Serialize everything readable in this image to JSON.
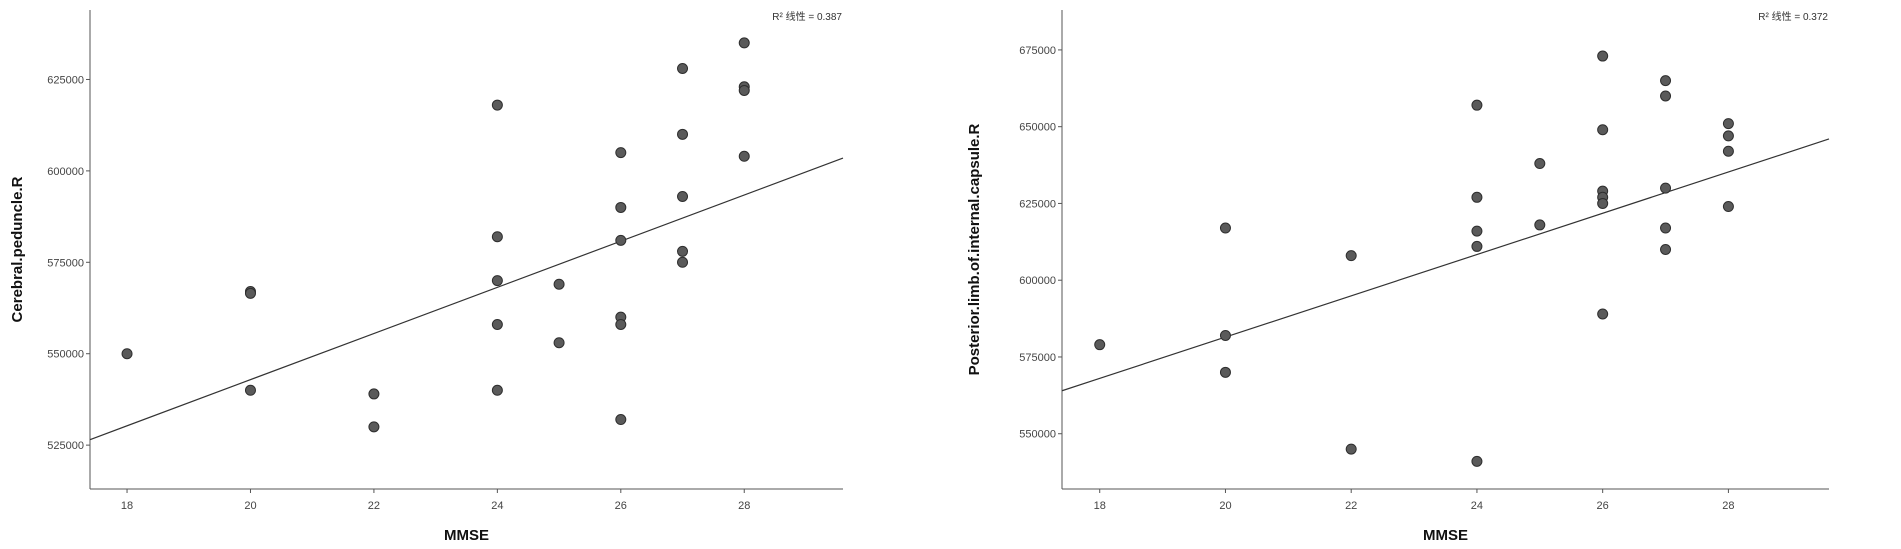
{
  "chart_data": [
    {
      "type": "scatter",
      "title": "",
      "xlabel": "MMSE",
      "ylabel": "Cerebral.peduncle.R",
      "annotation": {
        "label": "R² 线性 = 0.387"
      },
      "xlim": [
        17.4,
        29.6
      ],
      "ylim": [
        0.513,
        0.644
      ],
      "xticks": [
        "18",
        "20",
        "22",
        "24",
        "26",
        "28"
      ],
      "yticks": [
        "525000",
        "550000",
        "575000",
        "600000",
        "625000"
      ],
      "ytick_values": [
        0.525,
        0.55,
        0.575,
        0.6,
        0.625
      ],
      "fit_line": {
        "x": [
          17.4,
          29.6
        ],
        "y": [
          0.5265,
          0.6035
        ]
      },
      "points": [
        {
          "x": 18,
          "y": 0.55
        },
        {
          "x": 20,
          "y": 0.567
        },
        {
          "x": 20,
          "y": 0.5665
        },
        {
          "x": 20,
          "y": 0.54
        },
        {
          "x": 22,
          "y": 0.539
        },
        {
          "x": 22,
          "y": 0.53
        },
        {
          "x": 24,
          "y": 0.618
        },
        {
          "x": 24,
          "y": 0.582
        },
        {
          "x": 24,
          "y": 0.57
        },
        {
          "x": 24,
          "y": 0.558
        },
        {
          "x": 24,
          "y": 0.54
        },
        {
          "x": 25,
          "y": 0.569
        },
        {
          "x": 25,
          "y": 0.553
        },
        {
          "x": 26,
          "y": 0.605
        },
        {
          "x": 26,
          "y": 0.59
        },
        {
          "x": 26,
          "y": 0.581
        },
        {
          "x": 26,
          "y": 0.56
        },
        {
          "x": 26,
          "y": 0.558
        },
        {
          "x": 26,
          "y": 0.532
        },
        {
          "x": 27,
          "y": 0.628
        },
        {
          "x": 27,
          "y": 0.61
        },
        {
          "x": 27,
          "y": 0.593
        },
        {
          "x": 27,
          "y": 0.578
        },
        {
          "x": 27,
          "y": 0.575
        },
        {
          "x": 28,
          "y": 0.635
        },
        {
          "x": 28,
          "y": 0.623
        },
        {
          "x": 28,
          "y": 0.622
        },
        {
          "x": 28,
          "y": 0.604
        }
      ]
    },
    {
      "type": "scatter",
      "title": "",
      "xlabel": "MMSE",
      "ylabel": "Posterior.limb.of.internal.capsule.R",
      "annotation": {
        "label": "R² 线性 = 0.372"
      },
      "xlim": [
        17.4,
        29.6
      ],
      "ylim": [
        0.532,
        0.688
      ],
      "xticks": [
        "18",
        "20",
        "22",
        "24",
        "26",
        "28"
      ],
      "yticks": [
        "550000",
        "575000",
        "600000",
        "625000",
        "650000",
        "675000"
      ],
      "ytick_values": [
        0.55,
        0.575,
        0.6,
        0.625,
        0.65,
        0.675
      ],
      "fit_line": {
        "x": [
          17.4,
          29.6
        ],
        "y": [
          0.564,
          0.646
        ]
      },
      "points": [
        {
          "x": 18,
          "y": 0.579
        },
        {
          "x": 20,
          "y": 0.617
        },
        {
          "x": 20,
          "y": 0.582
        },
        {
          "x": 20,
          "y": 0.57
        },
        {
          "x": 22,
          "y": 0.608
        },
        {
          "x": 22,
          "y": 0.545
        },
        {
          "x": 24,
          "y": 0.657
        },
        {
          "x": 24,
          "y": 0.627
        },
        {
          "x": 24,
          "y": 0.616
        },
        {
          "x": 24,
          "y": 0.611
        },
        {
          "x": 24,
          "y": 0.541
        },
        {
          "x": 25,
          "y": 0.638
        },
        {
          "x": 25,
          "y": 0.618
        },
        {
          "x": 26,
          "y": 0.673
        },
        {
          "x": 26,
          "y": 0.649
        },
        {
          "x": 26,
          "y": 0.629
        },
        {
          "x": 26,
          "y": 0.627
        },
        {
          "x": 26,
          "y": 0.625
        },
        {
          "x": 26,
          "y": 0.589
        },
        {
          "x": 27,
          "y": 0.665
        },
        {
          "x": 27,
          "y": 0.66
        },
        {
          "x": 27,
          "y": 0.63
        },
        {
          "x": 27,
          "y": 0.617
        },
        {
          "x": 27,
          "y": 0.61
        },
        {
          "x": 28,
          "y": 0.651
        },
        {
          "x": 28,
          "y": 0.647
        },
        {
          "x": 28,
          "y": 0.642
        },
        {
          "x": 28,
          "y": 0.624
        }
      ]
    }
  ],
  "style": {
    "point_fill": "#5a5a5a",
    "point_stroke": "#2e2e2e",
    "line_color": "#333333",
    "axis_color": "#555555"
  }
}
